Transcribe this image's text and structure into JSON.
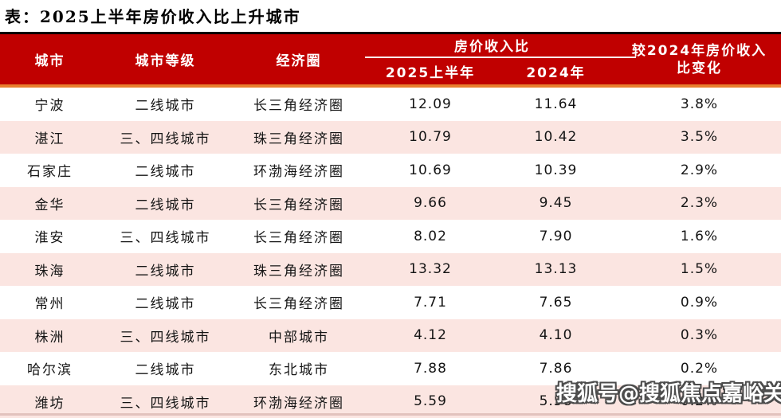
{
  "title": "表：2025上半年房价收入比上升城市",
  "watermark": "搜狐号@搜狐焦点嘉峪关站",
  "colors": {
    "header_red": "#C00000",
    "row_pink": "#FBE5E1",
    "accent_orange": "#E87E2E",
    "header_text": "#FFFFFF",
    "body_text": "#141414"
  },
  "chart_data": {
    "type": "table",
    "title": "表：2025上半年房价收入比上升城市",
    "columns": {
      "city": "城市",
      "tier": "城市等级",
      "region": "经济圈",
      "group": "房价收入比",
      "h2025": "2025上半年",
      "h2024": "2024年",
      "change_line1": "较2024年房价收入",
      "change_line2": "比变化"
    },
    "rows": [
      {
        "city": "宁波",
        "tier": "二线城市",
        "region": "长三角经济圈",
        "v2025": "12.09",
        "v2024": "11.64",
        "change": "3.8%"
      },
      {
        "city": "湛江",
        "tier": "三、四线城市",
        "region": "珠三角经济圈",
        "v2025": "10.79",
        "v2024": "10.42",
        "change": "3.5%"
      },
      {
        "city": "石家庄",
        "tier": "二线城市",
        "region": "环渤海经济圈",
        "v2025": "10.69",
        "v2024": "10.39",
        "change": "2.9%"
      },
      {
        "city": "金华",
        "tier": "二线城市",
        "region": "长三角经济圈",
        "v2025": "9.66",
        "v2024": "9.45",
        "change": "2.3%"
      },
      {
        "city": "淮安",
        "tier": "三、四线城市",
        "region": "长三角经济圈",
        "v2025": "8.02",
        "v2024": "7.90",
        "change": "1.6%"
      },
      {
        "city": "珠海",
        "tier": "二线城市",
        "region": "珠三角经济圈",
        "v2025": "13.32",
        "v2024": "13.13",
        "change": "1.5%"
      },
      {
        "city": "常州",
        "tier": "二线城市",
        "region": "长三角经济圈",
        "v2025": "7.71",
        "v2024": "7.65",
        "change": "0.9%"
      },
      {
        "city": "株洲",
        "tier": "三、四线城市",
        "region": "中部城市",
        "v2025": "4.12",
        "v2024": "4.10",
        "change": "0.3%"
      },
      {
        "city": "哈尔滨",
        "tier": "二线城市",
        "region": "东北城市",
        "v2025": "7.88",
        "v2024": "7.86",
        "change": "0.2%"
      },
      {
        "city": "潍坊",
        "tier": "三、四线城市",
        "region": "环渤海经济圈",
        "v2025": "5.59",
        "v2024": "5.58",
        "change": "0.2%"
      }
    ]
  }
}
